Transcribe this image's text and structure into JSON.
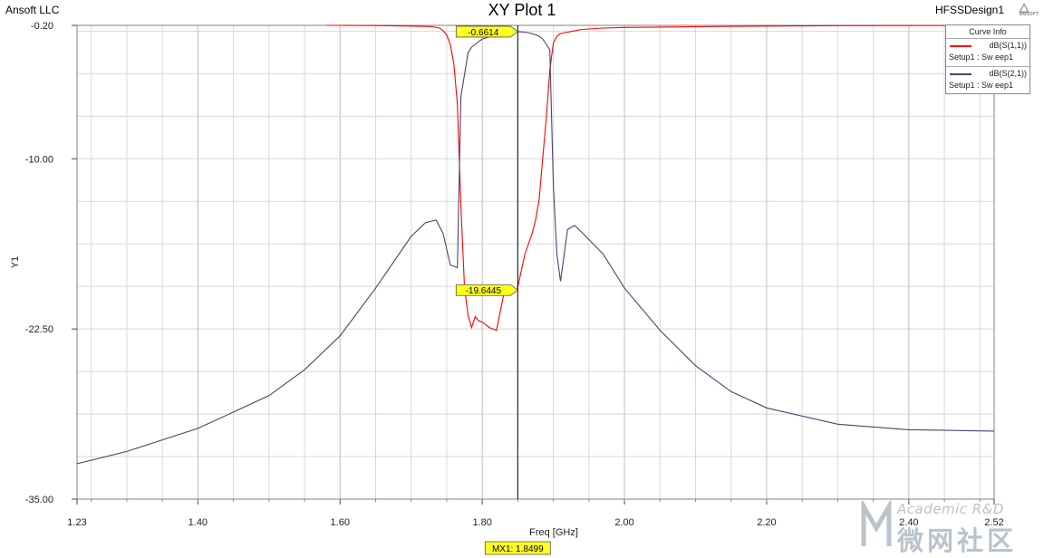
{
  "header": {
    "left": "Ansoft LLC",
    "title": "XY Plot 1",
    "right": "HFSSDesign1",
    "logo_text": "ANSOFT"
  },
  "legend": {
    "title": "Curve Info",
    "items": [
      {
        "name": "dB(S(1,1))",
        "setup": "Setup1 : Sw eep1",
        "color": "#ff0000"
      },
      {
        "name": "dB(S(2,1))",
        "setup": "Setup1 : Sw eep1",
        "color": "#504070"
      }
    ]
  },
  "watermark": {
    "en": "Academic R&D",
    "cn": "微网社区"
  },
  "chart_data": {
    "type": "line",
    "title": "XY Plot 1",
    "xlabel": "Freq [GHz]",
    "ylabel": "Y1",
    "xlim": [
      1.23,
      2.52
    ],
    "ylim": [
      -35.0,
      -0.2
    ],
    "grid": true,
    "x_ticks": [
      {
        "value": 1.23,
        "label": "1.23"
      },
      {
        "value": 1.4,
        "label": "1.40"
      },
      {
        "value": 1.6,
        "label": "1.60"
      },
      {
        "value": 1.8,
        "label": "1.80"
      },
      {
        "value": 2.0,
        "label": "2.00"
      },
      {
        "value": 2.2,
        "label": "2.20"
      },
      {
        "value": 2.4,
        "label": "2.40"
      },
      {
        "value": 2.52,
        "label": "2.52"
      }
    ],
    "y_ticks": [
      {
        "value": -0.2,
        "label": "-0.20"
      },
      {
        "value": -10.0,
        "label": "-10.00"
      },
      {
        "value": -22.5,
        "label": "-22.50"
      },
      {
        "value": -35.0,
        "label": "-35.00"
      }
    ],
    "series": [
      {
        "name": "dB(S(1,1))",
        "color": "#ff0000",
        "x": [
          1.58,
          1.6,
          1.65,
          1.7,
          1.73,
          1.74,
          1.745,
          1.75,
          1.755,
          1.76,
          1.765,
          1.77,
          1.775,
          1.78,
          1.785,
          1.79,
          1.795,
          1.8,
          1.81,
          1.82,
          1.83,
          1.84,
          1.849,
          1.86,
          1.87,
          1.875,
          1.88,
          1.885,
          1.89,
          1.895,
          1.9,
          1.905,
          1.91,
          1.92,
          1.94,
          1.97,
          2.0,
          2.1,
          2.2,
          2.3,
          2.4,
          2.52
        ],
        "y": [
          -0.2,
          -0.2,
          -0.21,
          -0.25,
          -0.3,
          -0.4,
          -0.6,
          -0.9,
          -1.6,
          -3.0,
          -6.0,
          -13.5,
          -19.5,
          -21.5,
          -22.4,
          -21.6,
          -21.9,
          -22.0,
          -22.4,
          -22.6,
          -20.0,
          -19.8,
          -19.6445,
          -17.0,
          -15.5,
          -14.5,
          -13.0,
          -10.0,
          -7.0,
          -3.5,
          -1.5,
          -1.0,
          -0.8,
          -0.7,
          -0.5,
          -0.4,
          -0.35,
          -0.3,
          -0.25,
          -0.22,
          -0.21,
          -0.2
        ]
      },
      {
        "name": "dB(S(2,1))",
        "color": "#504070",
        "x": [
          1.23,
          1.3,
          1.4,
          1.5,
          1.55,
          1.6,
          1.65,
          1.7,
          1.72,
          1.735,
          1.745,
          1.755,
          1.765,
          1.77,
          1.775,
          1.78,
          1.785,
          1.79,
          1.8,
          1.82,
          1.849,
          1.86,
          1.87,
          1.875,
          1.88,
          1.885,
          1.89,
          1.895,
          1.9,
          1.905,
          1.91,
          1.92,
          1.93,
          1.94,
          1.97,
          2.0,
          2.05,
          2.1,
          2.15,
          2.2,
          2.3,
          2.4,
          2.52
        ],
        "y": [
          -32.4,
          -31.5,
          -29.8,
          -27.4,
          -25.5,
          -23.0,
          -19.5,
          -15.7,
          -14.7,
          -14.5,
          -15.5,
          -17.8,
          -18.0,
          -5.4,
          -3.8,
          -2.2,
          -1.8,
          -1.6,
          -1.2,
          -0.9,
          -0.6614,
          -0.7,
          -0.8,
          -0.9,
          -1.0,
          -1.2,
          -1.6,
          -2.0,
          -12.0,
          -17.0,
          -19.0,
          -15.2,
          -14.9,
          -15.4,
          -17.0,
          -19.5,
          -22.6,
          -25.2,
          -27.1,
          -28.3,
          -29.5,
          -29.9,
          -30.0
        ]
      }
    ],
    "marker": {
      "label": "MX1: 1.8499",
      "x": 1.8499,
      "values": [
        {
          "series": "dB(S(2,1))",
          "y": -0.6614,
          "label": "-0.6614"
        },
        {
          "series": "dB(S(1,1))",
          "y": -19.6445,
          "label": "-19.6445"
        }
      ]
    }
  }
}
